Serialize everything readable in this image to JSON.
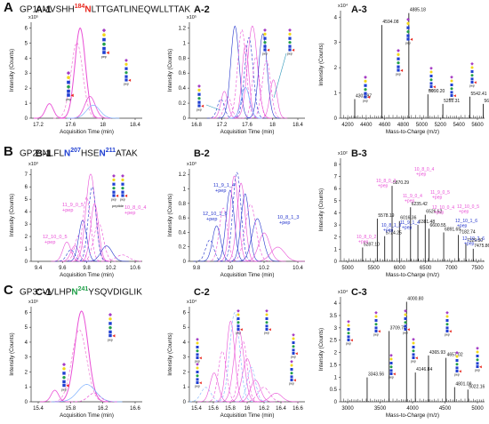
{
  "sections": [
    {
      "letter": "A",
      "title": {
        "prefix": "GP1: MVSHH",
        "site_num": "184",
        "site_res": "N",
        "suffix": "LTTGATLINEQWLLTTAK",
        "site_color": "#e8261d"
      },
      "panels": [
        {
          "label": "A-1",
          "ylabel": "Intensity (Counts)",
          "xlabel": "Acquisition Time (min)",
          "scale": "x10⁵",
          "yticks": [
            "0",
            "1",
            "2",
            "3",
            "4",
            "5",
            "6"
          ],
          "xticks": [
            "17.2",
            "17.6",
            "18",
            "18.4"
          ]
        },
        {
          "label": "A-2",
          "ylabel": "Intensity (Counts)",
          "xlabel": "Acquisition Time (min)",
          "scale": "x10⁵",
          "yticks": [
            "0",
            "0.2",
            "0.4",
            "0.6",
            "0.8",
            "1",
            "1.2"
          ],
          "xticks": [
            "16.8",
            "17.2",
            "17.6",
            "18",
            "18.4"
          ]
        },
        {
          "label": "A-3",
          "ylabel": "Intensity (Counts)",
          "xlabel": "Mass-to-Charge (m/z)",
          "scale": "x10⁴",
          "yticks": [
            "0",
            "1",
            "2",
            "3",
            "4"
          ],
          "xticks": [
            "4200",
            "4400",
            "4600",
            "4800",
            "5000",
            "5200",
            "5400",
            "5600"
          ],
          "peaks": [
            "4594.08",
            "4885.18",
            "4302.97",
            "5090.20",
            "5251.31",
            "5542.41",
            "5685.42"
          ]
        }
      ]
    },
    {
      "letter": "B",
      "title": {
        "prefix": "GP2: NLFL",
        "site_res": "N",
        "site_num": "207",
        "mid": "HSE",
        "site_res2": "N",
        "site_num2": "211",
        "suffix": "ATAK",
        "site_color": "#1f3fd1"
      },
      "panels": [
        {
          "label": "B-1",
          "ylabel": "Intensity (Counts)",
          "xlabel": "Acquisition Time (min)",
          "scale": "x10³",
          "yticks": [
            "0",
            "1",
            "2",
            "3",
            "4",
            "5",
            "6",
            "7"
          ],
          "xticks": [
            "9.4",
            "9.6",
            "9.8",
            "10.2",
            "10.6"
          ],
          "annotations": [
            "11_9_0_5\n+pep",
            "10_8_0_4\n+pep",
            "12_10_0_5\n+pep"
          ],
          "glycan_caption": "peptide"
        },
        {
          "label": "B-2",
          "ylabel": "Intensity (Counts)",
          "xlabel": "Acquisition Time (min)",
          "scale": "x10³",
          "yticks": [
            "0",
            "0.2",
            "0.4",
            "0.6",
            "0.8",
            "1",
            "1.2"
          ],
          "xticks": [
            "9.8",
            "10",
            "10.2",
            "10.4"
          ],
          "annotations": [
            "11_9_1_4\n+pep",
            "12_10_1_6\n+pep",
            "10_8_1_3\n+pep"
          ]
        },
        {
          "label": "B-3",
          "ylabel": "Intensity (Counts)",
          "xlabel": "Mass-to-Charge (m/z)",
          "scale": "x10²",
          "yticks": [
            "0",
            "1",
            "2",
            "3",
            "4",
            "5",
            "6",
            "7",
            "8"
          ],
          "xticks": [
            "5000",
            "5500",
            "6000",
            "6500",
            "7000",
            "7500"
          ],
          "annotations": [
            "10_8_0_4\n+pep",
            "10_8_0_3\n+pep",
            "11_9_0_4\n+pep",
            "11_9_0_5\n+pep",
            "12_10_0_4\n+pep",
            "12_10_0_5\n+pep",
            "10_8_0_2\n+pep",
            "10_8_1_3\n+pep",
            "11_9_1_4\n+pep",
            "12_10_1_6\n+pep",
            "12_10_2_6\n+pep"
          ],
          "peaks": [
            "5870.29",
            "5578.19",
            "6235.42",
            "6526.52",
            "6016.36",
            "6381.48",
            "6600.55",
            "6891.65",
            "7182.74",
            "7329.80",
            "7475.86",
            "5287.10",
            "5724.25"
          ]
        }
      ]
    },
    {
      "letter": "C",
      "title": {
        "prefix": "GP3: VVLHP",
        "site_res": "N",
        "site_num": "241",
        "suffix": "YSQVDIGLIK",
        "site_color": "#22a04a"
      },
      "panels": [
        {
          "label": "C-1",
          "ylabel": "Intensity (Counts)",
          "xlabel": "Acquisition Time (min)",
          "scale": "x10⁵",
          "yticks": [
            "0",
            "1",
            "2",
            "3",
            "4",
            "5",
            "6"
          ],
          "xticks": [
            "15.4",
            "15.8",
            "16.2",
            "16.6"
          ]
        },
        {
          "label": "C-2",
          "ylabel": "Intensity (Counts)",
          "xlabel": "Acquisition Time (min)",
          "scale": "x10⁴",
          "yticks": [
            "0",
            "1",
            "2",
            "3",
            "4",
            "5",
            "6"
          ],
          "xticks": [
            "15.4",
            "15.6",
            "15.8",
            "16",
            "16.2",
            "16.4",
            "16.6"
          ]
        },
        {
          "label": "C-3",
          "ylabel": "Intensity (Counts)",
          "xlabel": "Mass-to-Charge (m/z)",
          "scale": "x10⁴",
          "yticks": [
            "0",
            "0.5",
            "1",
            "1.5",
            "2",
            "2.5",
            "3",
            "3.5",
            "4"
          ],
          "xticks": [
            "3000",
            "3500",
            "4000",
            "4500",
            "5000"
          ],
          "peaks": [
            "4000.80",
            "3709.70",
            "4365.93",
            "4657.02",
            "3343.56",
            "4146.84",
            "4801.09",
            "5022.16"
          ]
        }
      ]
    }
  ],
  "chart_data": [
    {
      "type": "line",
      "panel": "A-1",
      "xlabel": "Acquisition Time (min)",
      "ylabel": "Intensity (Counts)",
      "xlim": [
        16.9,
        18.6
      ],
      "ylim": [
        0,
        6.6
      ],
      "series": [
        {
          "values_x": [
            17.18
          ],
          "values_y": [
            1.0
          ]
        },
        {
          "values_x": [
            17.65
          ],
          "values_y": [
            6.2
          ]
        },
        {
          "values_x": [
            17.8
          ],
          "values_y": [
            1.5
          ]
        }
      ]
    },
    {
      "type": "line",
      "panel": "A-2",
      "xlabel": "Acquisition Time (min)",
      "ylabel": "Intensity (Counts)",
      "xlim": [
        16.75,
        18.4
      ],
      "ylim": [
        0,
        1.25
      ]
    },
    {
      "type": "bar",
      "panel": "A-3",
      "xlabel": "Mass-to-Charge (m/z)",
      "ylabel": "Intensity (Counts)",
      "xlim": [
        4150,
        5700
      ],
      "ylim": [
        0,
        4.5
      ],
      "x": [
        4302.97,
        4594.08,
        4885.18,
        5090.2,
        5251.31,
        5542.41,
        5685.42
      ],
      "values": [
        0.8,
        3.9,
        4.4,
        1.0,
        0.6,
        0.9,
        0.6
      ]
    },
    {
      "type": "line",
      "panel": "B-1",
      "xlabel": "Acquisition Time (min)",
      "ylabel": "Intensity (Counts)",
      "xlim": [
        9.35,
        10.75
      ],
      "ylim": [
        0,
        7.2
      ]
    },
    {
      "type": "line",
      "panel": "B-2",
      "xlabel": "Acquisition Time (min)",
      "ylabel": "Intensity (Counts)",
      "xlim": [
        9.65,
        10.5
      ],
      "ylim": [
        0,
        1.3
      ]
    },
    {
      "type": "bar",
      "panel": "B-3",
      "xlabel": "Mass-to-Charge (m/z)",
      "ylabel": "Intensity (Counts)",
      "xlim": [
        4850,
        7700
      ],
      "ylim": [
        0,
        8.2
      ],
      "x": [
        5287.1,
        5578.19,
        5724.25,
        5870.29,
        6016.36,
        6235.42,
        6381.48,
        6526.52,
        6600.55,
        6891.65,
        7182.74,
        7329.8,
        7475.86
      ],
      "values": [
        1.1,
        3.4,
        2.0,
        6.0,
        3.2,
        4.3,
        2.9,
        3.7,
        2.6,
        2.3,
        2.1,
        1.4,
        1.0
      ]
    },
    {
      "type": "line",
      "panel": "C-1",
      "xlabel": "Acquisition Time (min)",
      "ylabel": "Intensity (Counts)",
      "xlim": [
        15.2,
        16.7
      ],
      "ylim": [
        0,
        6.6
      ]
    },
    {
      "type": "line",
      "panel": "C-2",
      "xlabel": "Acquisition Time (min)",
      "ylabel": "Intensity (Counts)",
      "xlim": [
        15.3,
        16.7
      ],
      "ylim": [
        0,
        6.6
      ]
    },
    {
      "type": "bar",
      "panel": "C-3",
      "xlabel": "Mass-to-Charge (m/z)",
      "ylabel": "Intensity (Counts)",
      "xlim": [
        2900,
        5300
      ],
      "ylim": [
        0,
        4.3
      ],
      "x": [
        3343.56,
        3709.7,
        4000.8,
        4146.84,
        4365.93,
        4657.02,
        4801.09,
        5022.16
      ],
      "values": [
        1.0,
        2.9,
        4.1,
        1.2,
        1.9,
        1.8,
        0.6,
        0.5
      ]
    }
  ],
  "colors": {
    "magenta": "#e94fd6",
    "blue": "#2233cc",
    "pink": "#f08ad8",
    "dark": "#222222",
    "light_blue": "#7fb2ff"
  }
}
